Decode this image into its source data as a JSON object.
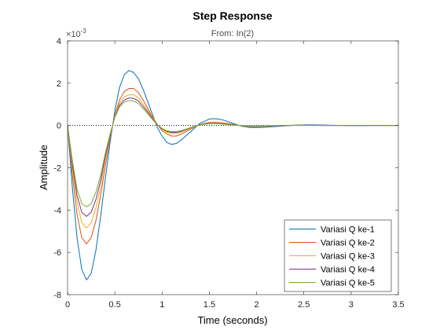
{
  "chart_data": {
    "type": "line",
    "title": "Step Response",
    "subtitle": "From: In(2)",
    "xlabel": "Time (seconds)",
    "ylabel": "Amplitude",
    "y_exponent": "×10",
    "y_exponent_power": "-3",
    "xlim": [
      0,
      3.5
    ],
    "ylim": [
      -8,
      4
    ],
    "x_ticks": [
      0,
      0.5,
      1,
      1.5,
      2,
      2.5,
      3,
      3.5
    ],
    "x_tick_labels": [
      "0",
      "0.5",
      "1",
      "1.5",
      "2",
      "2.5",
      "3",
      "3.5"
    ],
    "y_ticks": [
      -8,
      -6,
      -4,
      -2,
      0,
      2,
      4
    ],
    "y_tick_labels": [
      "-8",
      "-6",
      "-4",
      "-2",
      "0",
      "2",
      "4"
    ],
    "reference_line": 0,
    "legend_position": "bottom-right",
    "grid": false,
    "series": [
      {
        "name": "Variasi Q ke-1",
        "color": "#0072BD",
        "x": [
          0,
          0.05,
          0.1,
          0.15,
          0.2,
          0.25,
          0.3,
          0.35,
          0.4,
          0.45,
          0.5,
          0.55,
          0.6,
          0.65,
          0.7,
          0.75,
          0.8,
          0.85,
          0.9,
          0.95,
          1.0,
          1.05,
          1.1,
          1.15,
          1.2,
          1.25,
          1.3,
          1.35,
          1.4,
          1.45,
          1.5,
          1.55,
          1.6,
          1.65,
          1.7,
          1.75,
          1.8,
          1.85,
          1.9,
          1.95,
          2.0,
          2.1,
          2.2,
          2.3,
          2.4,
          2.5,
          2.6,
          2.7,
          2.8,
          2.9,
          3.0,
          3.1,
          3.2,
          3.3,
          3.4,
          3.5
        ],
        "values": [
          0,
          -2.9,
          -5.3,
          -6.8,
          -7.3,
          -7.0,
          -5.9,
          -4.3,
          -2.5,
          -0.8,
          0.7,
          1.8,
          2.4,
          2.6,
          2.5,
          2.2,
          1.7,
          1.1,
          0.5,
          -0.1,
          -0.5,
          -0.8,
          -0.9,
          -0.85,
          -0.7,
          -0.5,
          -0.3,
          -0.1,
          0.1,
          0.2,
          0.3,
          0.32,
          0.3,
          0.25,
          0.18,
          0.1,
          0.02,
          -0.04,
          -0.08,
          -0.1,
          -0.1,
          -0.08,
          -0.05,
          -0.02,
          0.01,
          0.03,
          0.03,
          0.02,
          0.01,
          0.0,
          -0.01,
          -0.01,
          0.0,
          0.0,
          0.0,
          0.0
        ]
      },
      {
        "name": "Variasi Q ke-2",
        "color": "#D95319",
        "x": [
          0,
          0.05,
          0.1,
          0.15,
          0.2,
          0.25,
          0.3,
          0.35,
          0.4,
          0.45,
          0.5,
          0.55,
          0.6,
          0.65,
          0.7,
          0.75,
          0.8,
          0.85,
          0.9,
          0.95,
          1.0,
          1.05,
          1.1,
          1.15,
          1.2,
          1.25,
          1.3,
          1.35,
          1.4,
          1.45,
          1.5,
          1.55,
          1.6,
          1.65,
          1.7,
          1.75,
          1.8,
          1.85,
          1.9,
          1.95,
          2.0,
          2.1,
          2.2,
          2.3,
          2.4,
          2.5,
          2.6,
          2.7,
          2.8,
          2.9,
          3.0,
          3.1,
          3.2,
          3.3,
          3.4,
          3.5
        ],
        "values": [
          0,
          -2.3,
          -4.2,
          -5.3,
          -5.6,
          -5.3,
          -4.5,
          -3.3,
          -1.9,
          -0.6,
          0.5,
          1.2,
          1.6,
          1.75,
          1.75,
          1.55,
          1.2,
          0.8,
          0.4,
          0.05,
          -0.25,
          -0.4,
          -0.5,
          -0.5,
          -0.42,
          -0.3,
          -0.18,
          -0.06,
          0.04,
          0.1,
          0.14,
          0.15,
          0.14,
          0.12,
          0.09,
          0.05,
          0.01,
          -0.02,
          -0.04,
          -0.05,
          -0.05,
          -0.04,
          -0.02,
          -0.01,
          0.01,
          0.01,
          0.01,
          0.01,
          0.0,
          0.0,
          0.0,
          0.0,
          0.0,
          0.0,
          0.0,
          0.0
        ]
      },
      {
        "name": "Variasi Q ke-3",
        "color": "#EDB120",
        "x": [
          0,
          0.05,
          0.1,
          0.15,
          0.2,
          0.25,
          0.3,
          0.35,
          0.4,
          0.45,
          0.5,
          0.55,
          0.6,
          0.65,
          0.7,
          0.75,
          0.8,
          0.85,
          0.9,
          0.95,
          1.0,
          1.05,
          1.1,
          1.15,
          1.2,
          1.25,
          1.3,
          1.35,
          1.4,
          1.45,
          1.5,
          1.55,
          1.6,
          1.65,
          1.7,
          1.75,
          1.8,
          1.85,
          1.9,
          1.95,
          2.0,
          2.1,
          2.2,
          2.3,
          2.4,
          2.5,
          2.6,
          2.7,
          2.8,
          2.9,
          3.0,
          3.1,
          3.2,
          3.3,
          3.4,
          3.5
        ],
        "values": [
          0,
          -2.0,
          -3.6,
          -4.6,
          -4.85,
          -4.6,
          -3.9,
          -2.9,
          -1.6,
          -0.5,
          0.45,
          1.05,
          1.35,
          1.45,
          1.45,
          1.3,
          1.0,
          0.7,
          0.35,
          0.05,
          -0.18,
          -0.32,
          -0.38,
          -0.38,
          -0.32,
          -0.23,
          -0.13,
          -0.04,
          0.03,
          0.08,
          0.1,
          0.11,
          0.1,
          0.09,
          0.06,
          0.03,
          0.01,
          -0.01,
          -0.03,
          -0.03,
          -0.03,
          -0.02,
          -0.01,
          0.0,
          0.01,
          0.01,
          0.01,
          0.0,
          0.0,
          0.0,
          0.0,
          0.0,
          0.0,
          0.0,
          0.0,
          0.0
        ]
      },
      {
        "name": "Variasi Q ke-4",
        "color": "#7E2F8E",
        "x": [
          0,
          0.05,
          0.1,
          0.15,
          0.2,
          0.25,
          0.3,
          0.35,
          0.4,
          0.45,
          0.5,
          0.55,
          0.6,
          0.65,
          0.7,
          0.75,
          0.8,
          0.85,
          0.9,
          0.95,
          1.0,
          1.05,
          1.1,
          1.15,
          1.2,
          1.25,
          1.3,
          1.35,
          1.4,
          1.45,
          1.5,
          1.55,
          1.6,
          1.65,
          1.7,
          1.75,
          1.8,
          1.85,
          1.9,
          1.95,
          2.0,
          2.1,
          2.2,
          2.3,
          2.4,
          2.5,
          2.6,
          2.7,
          2.8,
          2.9,
          3.0,
          3.1,
          3.2,
          3.3,
          3.4,
          3.5
        ],
        "values": [
          0,
          -1.8,
          -3.3,
          -4.1,
          -4.3,
          -4.1,
          -3.5,
          -2.6,
          -1.45,
          -0.45,
          0.4,
          0.95,
          1.2,
          1.3,
          1.28,
          1.15,
          0.9,
          0.62,
          0.3,
          0.03,
          -0.16,
          -0.28,
          -0.33,
          -0.33,
          -0.28,
          -0.2,
          -0.11,
          -0.03,
          0.03,
          0.07,
          0.09,
          0.09,
          0.09,
          0.07,
          0.05,
          0.03,
          0.01,
          -0.01,
          -0.02,
          -0.03,
          -0.03,
          -0.02,
          -0.01,
          0.0,
          0.01,
          0.01,
          0.01,
          0.0,
          0.0,
          0.0,
          0.0,
          0.0,
          0.0,
          0.0,
          0.0,
          0.0
        ]
      },
      {
        "name": "Variasi Q ke-5",
        "color": "#77AC30",
        "x": [
          0,
          0.05,
          0.1,
          0.15,
          0.2,
          0.25,
          0.3,
          0.35,
          0.4,
          0.45,
          0.5,
          0.55,
          0.6,
          0.65,
          0.7,
          0.75,
          0.8,
          0.85,
          0.9,
          0.95,
          1.0,
          1.05,
          1.1,
          1.15,
          1.2,
          1.25,
          1.3,
          1.35,
          1.4,
          1.45,
          1.5,
          1.55,
          1.6,
          1.65,
          1.7,
          1.75,
          1.8,
          1.85,
          1.9,
          1.95,
          2.0,
          2.1,
          2.2,
          2.3,
          2.4,
          2.5,
          2.6,
          2.7,
          2.8,
          2.9,
          3.0,
          3.1,
          3.2,
          3.3,
          3.4,
          3.5
        ],
        "values": [
          0,
          -1.65,
          -3.0,
          -3.7,
          -3.85,
          -3.7,
          -3.15,
          -2.35,
          -1.3,
          -0.4,
          0.38,
          0.88,
          1.1,
          1.17,
          1.15,
          1.03,
          0.8,
          0.55,
          0.27,
          0.03,
          -0.14,
          -0.25,
          -0.29,
          -0.29,
          -0.25,
          -0.18,
          -0.1,
          -0.03,
          0.03,
          0.06,
          0.08,
          0.08,
          0.08,
          0.06,
          0.04,
          0.02,
          0.01,
          -0.01,
          -0.02,
          -0.02,
          -0.02,
          -0.02,
          -0.01,
          0.0,
          0.01,
          0.01,
          0.0,
          0.0,
          0.0,
          0.0,
          0.0,
          0.0,
          0.0,
          0.0,
          0.0,
          0.0
        ]
      }
    ]
  }
}
